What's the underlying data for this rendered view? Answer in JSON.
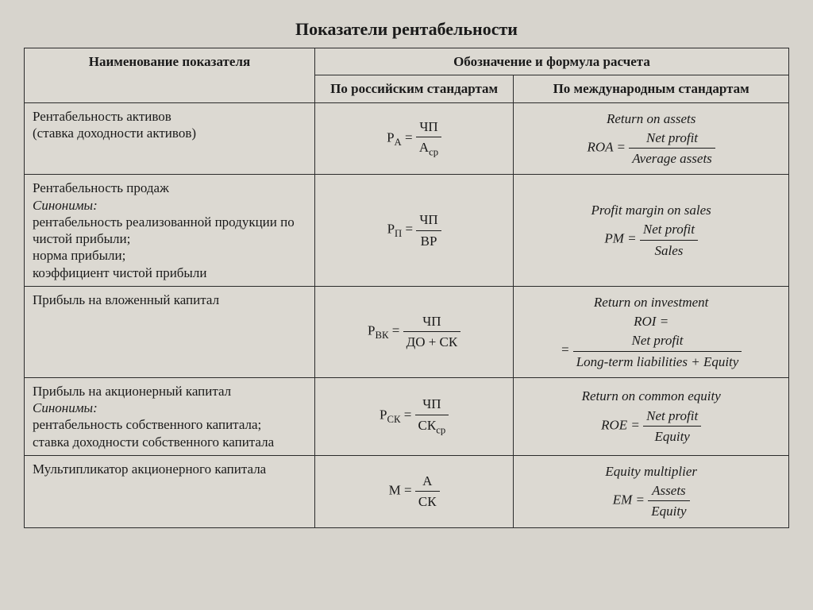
{
  "title": "Показатели рентабельности",
  "headers": {
    "name": "Наименование показателя",
    "formula_group": "Обозначение и формула расчета",
    "ru": "По российским стандартам",
    "intl": "По международным стандартам"
  },
  "rows": [
    {
      "name_main": "Рентабельность активов",
      "name_extra": "(ставка доходности  активов)",
      "ru_sym": "P",
      "ru_sub": "А",
      "ru_num": "ЧП",
      "ru_den": "А",
      "ru_den_sub": "ср",
      "intl_title": "Return on assets",
      "intl_sym": "ROA",
      "intl_num": "Net profit",
      "intl_den": "Average assets"
    },
    {
      "name_main": "Рентабельность продаж",
      "syn_label": "Синонимы:",
      "syn_text": "рентабельность реализованной продукции по чистой прибыли;\nнорма прибыли;\nкоэффициент чистой прибыли",
      "ru_sym": "P",
      "ru_sub": "П",
      "ru_num": "ЧП",
      "ru_den": "ВР",
      "intl_title": "Profit margin on sales",
      "intl_sym": "PM",
      "intl_num": "Net profit",
      "intl_den": "Sales"
    },
    {
      "name_main": "Прибыль на вложенный капитал",
      "ru_sym": "P",
      "ru_sub": "ВК",
      "ru_num": "ЧП",
      "ru_den": "ДО + СК",
      "intl_title": "Return on investment",
      "intl_sym": "ROI",
      "intl_num": "Net profit",
      "intl_den": "Long-term liabilities + Equity"
    },
    {
      "name_main": "Прибыль на акционерный капитал",
      "syn_label": "Синонимы:",
      "syn_text": "рентабельность собственного капитала;\nставка доходности собственного капитала",
      "ru_sym": "P",
      "ru_sub": "СК",
      "ru_num": "ЧП",
      "ru_den": "СК",
      "ru_den_sub": "ср",
      "intl_title": "Return on common equity",
      "intl_sym": "ROE",
      "intl_num": "Net profit",
      "intl_den": "Equity"
    },
    {
      "name_main": "Мультипликатор акционерного капитала",
      "ru_sym": "М",
      "ru_num": "А",
      "ru_den": "СК",
      "intl_title": "Equity multiplier",
      "intl_sym": "EM",
      "intl_num": "Assets",
      "intl_den": "Equity"
    }
  ]
}
